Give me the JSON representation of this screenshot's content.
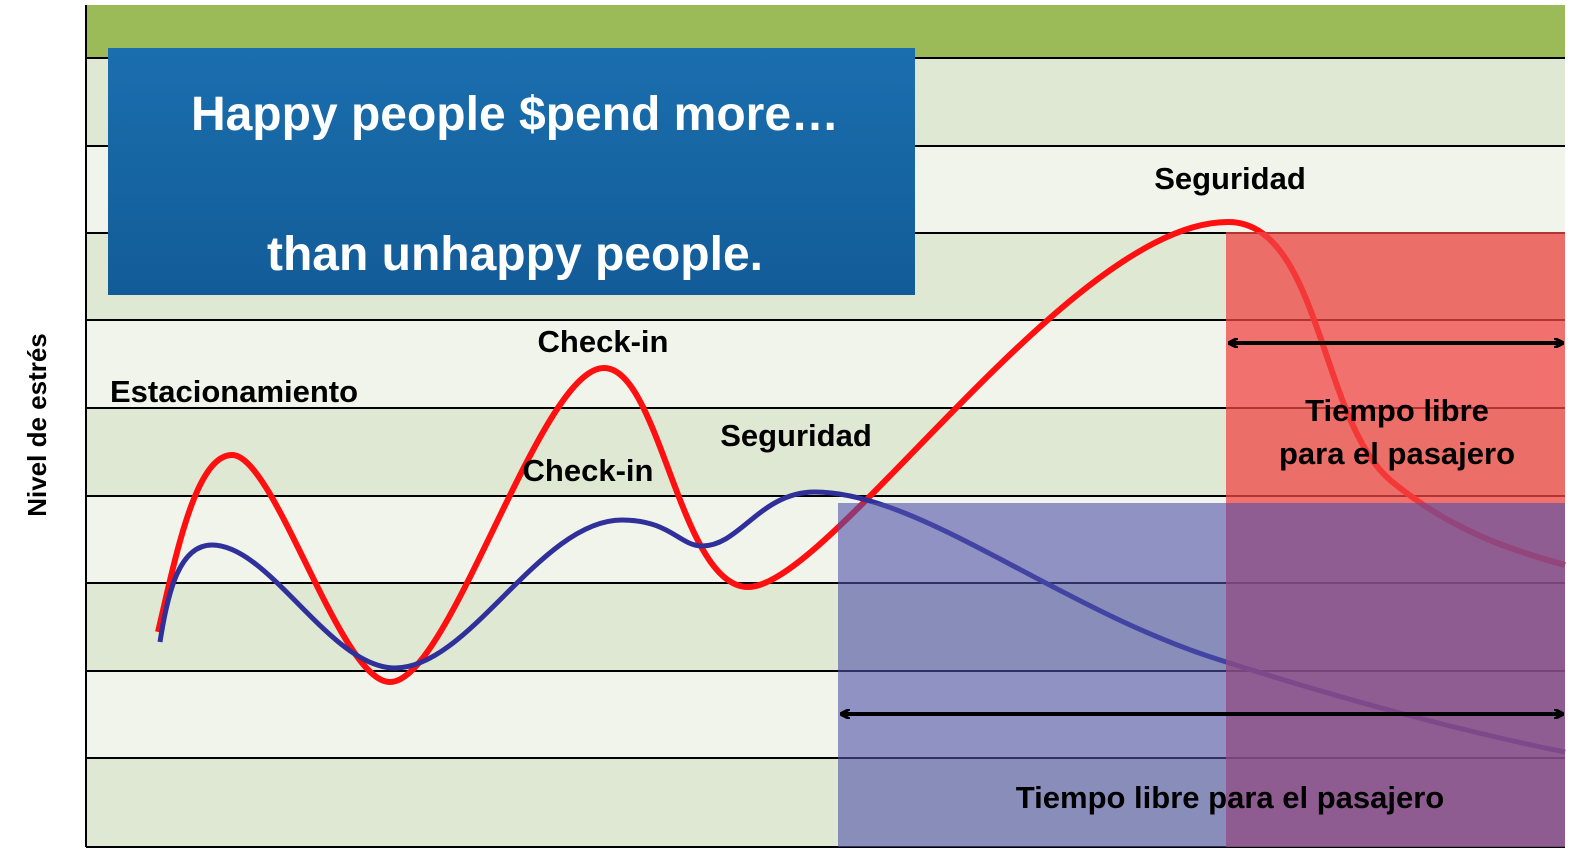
{
  "y_axis_label": "Nivel de estrés",
  "banner": {
    "line1": "Happy people $pend more…",
    "line2": "than unhappy people."
  },
  "labels": {
    "estacionamiento": "Estacionamiento",
    "check_in_red": "Check-in",
    "check_in_blue": "Check-in",
    "seguridad_blue": "Seguridad",
    "seguridad_red": "Seguridad",
    "tiempo_red_line1": "Tiempo libre",
    "tiempo_red_line2": "para el pasajero",
    "tiempo_blue": "Tiempo libre para el pasajero"
  }
}
